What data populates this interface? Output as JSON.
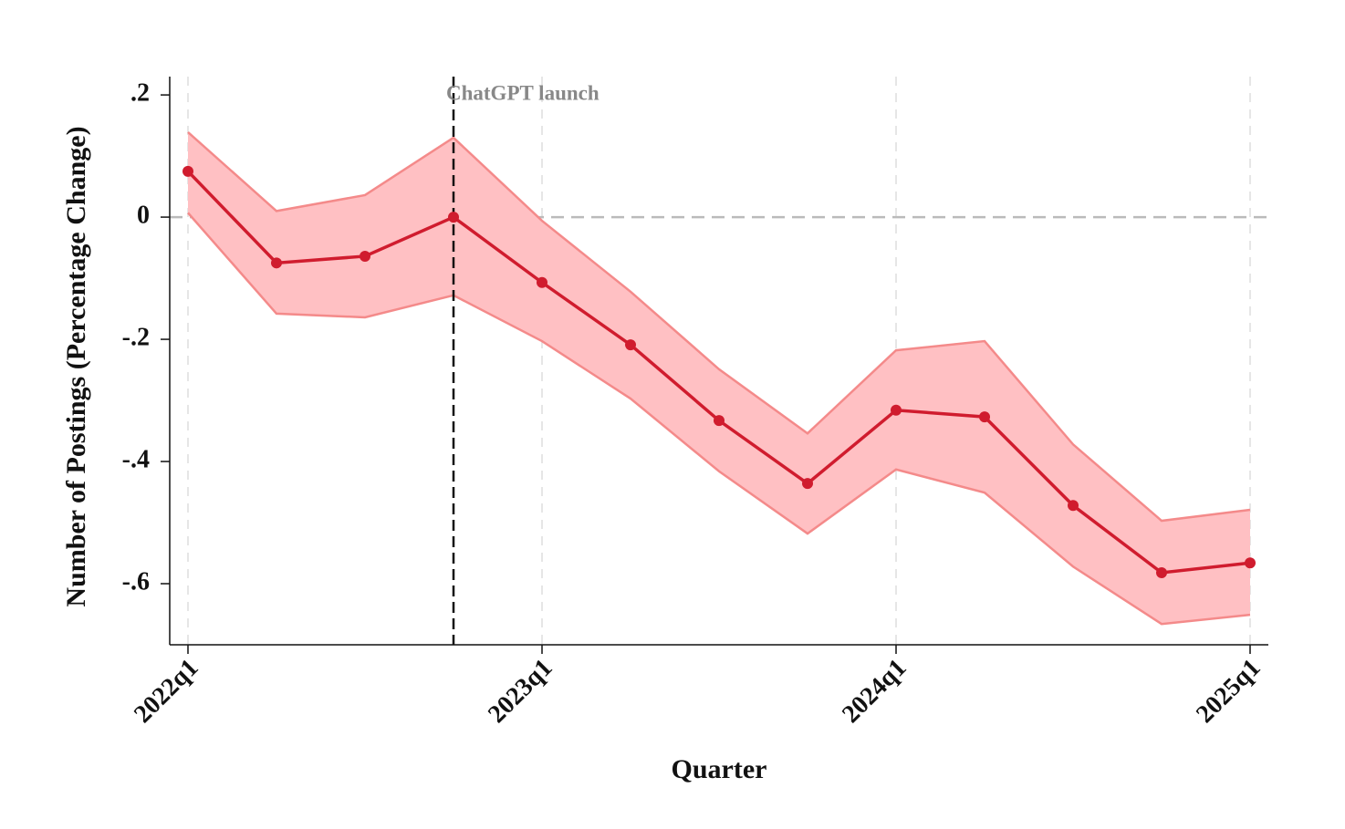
{
  "chart_data": {
    "type": "line",
    "x_label": "Quarter",
    "y_label": "Number of Postings (Percentage Change)",
    "categories": [
      "2022q1",
      null,
      null,
      null,
      "2023q1",
      null,
      null,
      null,
      "2024q1",
      null,
      null,
      null,
      "2025q1"
    ],
    "values": [
      0.075,
      -0.075,
      -0.064,
      0,
      -0.107,
      -0.209,
      -0.333,
      -0.436,
      -0.316,
      -0.327,
      -0.472,
      -0.582,
      -0.566
    ],
    "ci_upper": [
      0.139,
      0.01,
      0.036,
      0.13,
      -0.006,
      -0.122,
      -0.249,
      -0.354,
      -0.218,
      -0.203,
      -0.372,
      -0.497,
      -0.479
    ],
    "ci_lower": [
      0.007,
      -0.158,
      -0.164,
      -0.128,
      -0.203,
      -0.297,
      -0.416,
      -0.518,
      -0.413,
      -0.451,
      -0.572,
      -0.666,
      -0.651
    ],
    "color": "#d01c2e",
    "band_color": "#ffc0c3",
    "band_edge_color": "#f48a8a",
    "ylim": [
      -0.7,
      0.23
    ],
    "yticks": [
      {
        "value": 0.2,
        "label": ".2"
      },
      0,
      {
        "value": -0.2,
        "label": "-.2"
      },
      {
        "value": -0.4,
        "label": "-.4"
      },
      {
        "value": -0.6,
        "label": "-.6"
      }
    ],
    "zero_line": true,
    "vline": {
      "label": "ChatGPT launch",
      "at": 3
    },
    "grid": true
  }
}
